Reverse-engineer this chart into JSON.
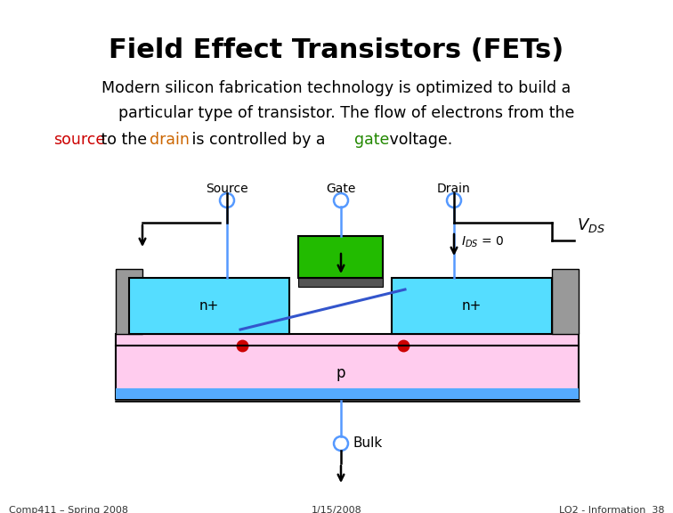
{
  "title": "Field Effect Transistors (FETs)",
  "bg_color": "#ffffff",
  "body_line1": "Modern silicon fabrication technology is optimized to build a",
  "body_line2": "    particular type of transistor. The flow of electrons from the",
  "footer_left": "Comp411 – Spring 2008",
  "footer_center": "1/15/2008",
  "footer_right": "LO2 - Information  38",
  "wire_color": "#5599ff",
  "black": "#000000",
  "red_dot": "#cc0000",
  "blue_diag": "#3355cc",
  "green_gate": "#22bb00",
  "cyan_nplus": "#55ddff",
  "pink_sub": "#ffccee",
  "blue_stripe": "#55aaff",
  "gray_contact": "#999999",
  "oxide_color": "#555555"
}
